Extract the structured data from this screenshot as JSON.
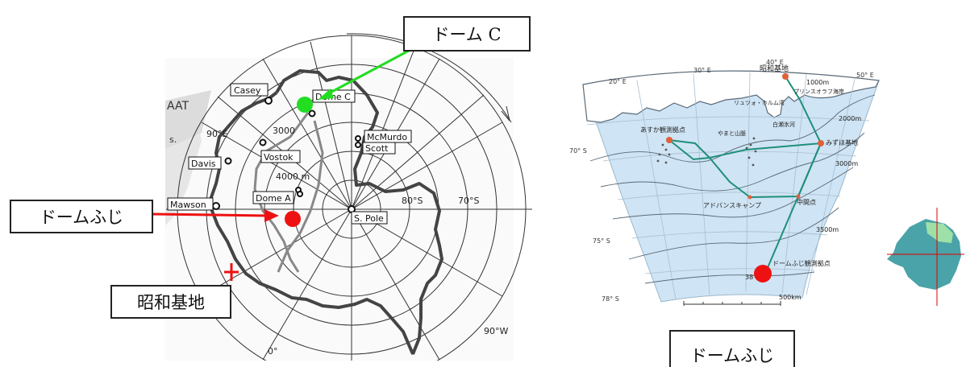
{
  "left_map": {
    "stations": [
      {
        "label": "Casey"
      },
      {
        "label": "Dome C"
      },
      {
        "label": "McMurdo"
      },
      {
        "label": "Scott"
      },
      {
        "label": "Vostok"
      },
      {
        "label": "Davis"
      },
      {
        "label": "Dome A"
      },
      {
        "label": "Mawson"
      },
      {
        "label": "S. Pole"
      }
    ],
    "contours": {
      "c3000": "3000",
      "c4000": "4000 m"
    },
    "lat_labels": {
      "l80": "80°S",
      "l70": "70°S"
    },
    "lon_labels": {
      "e90": "90°E",
      "w90": "90°W",
      "zero": "0°"
    },
    "edge_text": {
      "aat": "AAT",
      "frag": "s."
    },
    "callouts": {
      "dome_c": "ドーム C",
      "dome_fuji": "ドームふじ",
      "showa": "昭和基地"
    },
    "colors": {
      "dome_c_marker": "#22dd22",
      "dome_fuji_marker": "#ee1111",
      "showa_marker": "#ee1111",
      "green_arrow": "#22dd22",
      "red_arrow": "#ee1111"
    }
  },
  "right_map": {
    "lon_labels": {
      "e20": "20° E",
      "e30": "30° E",
      "e40": "40° E",
      "e50": "50° E"
    },
    "lat_labels": {
      "s70": "70° S",
      "s75": "75° S",
      "s78": "78° S"
    },
    "places": {
      "showa": "昭和基地",
      "prince_olav": "プリンスオラフ海岸",
      "lutzow": "リュツォ・ホルム湾",
      "shirase": "白瀬氷河",
      "mizuho": "みずほ基地",
      "asuka": "あすか観測拠点",
      "yamato": "やまと山脈",
      "advance": "アドバンスキャンプ",
      "relay": "中間点",
      "fuji": "ドームふじ観測拠点"
    },
    "contours": {
      "c1000": "1000m",
      "c2000": "2000m",
      "c3000": "3000m",
      "c3500": "3500m",
      "c38": "38"
    },
    "scale": "500km",
    "caption": "ドームふじ",
    "colors": {
      "sea": "#cfe4f4",
      "route": "#1f8f7a",
      "station": "#e0603a",
      "fuji_marker": "#ee1111",
      "inset_land": "#4aa3a8",
      "inset_highlight": "#9fe0a8",
      "inset_cross": "#dd0000"
    }
  }
}
